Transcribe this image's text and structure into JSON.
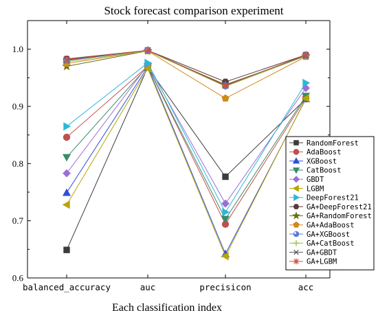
{
  "chart_data": {
    "type": "line",
    "title": "Stock forecast comparison experiment",
    "xlabel": "Each classification index",
    "ylabel": "",
    "categories": [
      "balanced_accuracy",
      "auc",
      "precisicon",
      "acc"
    ],
    "ylim": [
      0.6,
      1.05
    ],
    "yticks": [
      "0.6",
      "0.7",
      "0.8",
      "0.9",
      "1.0"
    ],
    "grid": false,
    "legend_position": "right",
    "series": [
      {
        "name": "RandomForest",
        "values": [
          0.649,
          0.968,
          0.777,
          0.913
        ],
        "color": "#3c3c3c",
        "marker": "square"
      },
      {
        "name": "AdaBoost",
        "values": [
          0.846,
          0.97,
          0.694,
          0.915
        ],
        "color": "#c0504d",
        "marker": "circle"
      },
      {
        "name": "XGBoost",
        "values": [
          0.749,
          0.969,
          0.642,
          0.913
        ],
        "color": "#2f4fd8",
        "marker": "triangle-up"
      },
      {
        "name": "CatBoost",
        "values": [
          0.811,
          0.97,
          0.703,
          0.918
        ],
        "color": "#3a8a6a",
        "marker": "triangle-down"
      },
      {
        "name": "GBDT",
        "values": [
          0.783,
          0.972,
          0.73,
          0.932
        ],
        "color": "#9b6fd6",
        "marker": "diamond"
      },
      {
        "name": "LGBM",
        "values": [
          0.728,
          0.966,
          0.638,
          0.914
        ],
        "color": "#b8a500",
        "marker": "triangle-left"
      },
      {
        "name": "DeepForest21",
        "values": [
          0.865,
          0.976,
          0.715,
          0.941
        ],
        "color": "#2bb8d8",
        "marker": "triangle-right"
      },
      {
        "name": "GA+DeepForest21",
        "values": [
          0.983,
          0.998,
          0.943,
          0.99
        ],
        "color": "#5a3a3a",
        "marker": "hexagon"
      },
      {
        "name": "GA+RandomForest",
        "values": [
          0.97,
          0.997,
          0.938,
          0.988
        ],
        "color": "#6b6b10",
        "marker": "star"
      },
      {
        "name": "GA+AdaBoost",
        "values": [
          0.975,
          0.997,
          0.914,
          0.987
        ],
        "color": "#d08a1a",
        "marker": "pentagon"
      },
      {
        "name": "GA+XGBoost",
        "values": [
          0.98,
          0.998,
          0.936,
          0.989
        ],
        "color": "#5a7ad8",
        "marker": "sphere"
      },
      {
        "name": "GA+CatBoost",
        "values": [
          0.978,
          0.997,
          0.935,
          0.988
        ],
        "color": "#90c040",
        "marker": "plus"
      },
      {
        "name": "GA+GBDT",
        "values": [
          0.981,
          0.998,
          0.937,
          0.989
        ],
        "color": "#555555",
        "marker": "x"
      },
      {
        "name": "GA+LGBM",
        "values": [
          0.982,
          0.998,
          0.936,
          0.99
        ],
        "color": "#d05040",
        "marker": "asterisk"
      }
    ]
  }
}
